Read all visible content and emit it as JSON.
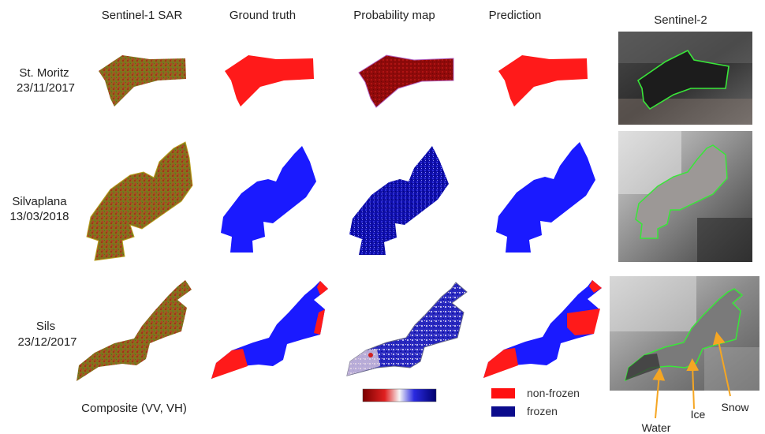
{
  "columns": [
    "Sentinel-1 SAR",
    "Ground truth",
    "Probability map",
    "Prediction",
    "Sentinel-2"
  ],
  "rows": [
    {
      "lake": "St. Moritz",
      "date": "23/11/2017"
    },
    {
      "lake": "Silvaplana",
      "date": "13/03/2018"
    },
    {
      "lake": "Sils",
      "date": "23/12/2017"
    }
  ],
  "footer": {
    "composite_label": "Composite (VV, VH)"
  },
  "legend": {
    "non_frozen_label": "non-frozen",
    "frozen_label": "frozen",
    "non_frozen_color": "#ff1010",
    "frozen_color": "#0b0b8c"
  },
  "annotations": {
    "water": "Water",
    "ice": "Ice",
    "snow": "Snow"
  },
  "colors": {
    "sar": "#8a6a1e",
    "ground_truth_nonfrozen": "#ff1a1a",
    "ground_truth_frozen": "#1a1aff",
    "probability_red": "#9a0b0b",
    "probability_blue": "#0a0aa8",
    "outline": "#39e639",
    "arrow": "#f5a623"
  }
}
